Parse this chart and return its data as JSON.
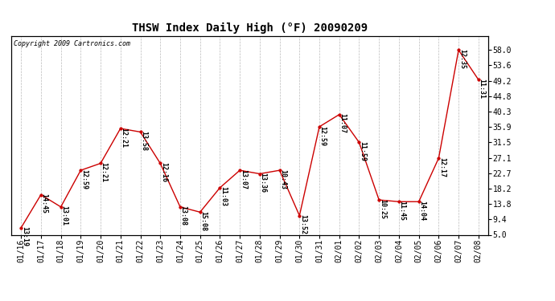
{
  "title": "THSW Index Daily High (°F) 20090209",
  "copyright": "Copyright 2009 Cartronics.com",
  "background_color": "#ffffff",
  "plot_bg_color": "#ffffff",
  "line_color": "#cc0000",
  "marker_color": "#cc0000",
  "grid_color": "#aaaaaa",
  "x_labels": [
    "01/16",
    "01/17",
    "01/18",
    "01/19",
    "01/20",
    "01/21",
    "01/22",
    "01/23",
    "01/24",
    "01/25",
    "01/26",
    "01/27",
    "01/28",
    "01/29",
    "01/30",
    "01/31",
    "02/01",
    "02/02",
    "02/03",
    "02/04",
    "02/05",
    "02/06",
    "02/07",
    "02/08"
  ],
  "y_values": [
    7.0,
    16.5,
    13.0,
    23.5,
    25.5,
    35.5,
    34.5,
    25.5,
    13.0,
    11.5,
    18.5,
    23.5,
    22.5,
    23.5,
    10.5,
    36.0,
    39.5,
    31.5,
    15.0,
    14.5,
    14.5,
    27.0,
    58.0,
    49.5
  ],
  "time_labels": [
    "13:19",
    "14:45",
    "13:01",
    "12:59",
    "12:21",
    "12:21",
    "13:58",
    "12:16",
    "13:08",
    "15:08",
    "11:03",
    "13:07",
    "13:36",
    "10:43",
    "13:52",
    "12:59",
    "11:07",
    "11:59",
    "10:25",
    "11:45",
    "14:04",
    "12:17",
    "12:35",
    "11:31"
  ],
  "ylim": [
    5.0,
    62.0
  ],
  "yticks_right": [
    5.0,
    9.4,
    13.8,
    18.2,
    22.7,
    27.1,
    31.5,
    35.9,
    40.3,
    44.8,
    49.2,
    53.6,
    58.0
  ],
  "title_fontsize": 10,
  "tick_fontsize": 7,
  "annot_fontsize": 6,
  "copyright_fontsize": 6
}
